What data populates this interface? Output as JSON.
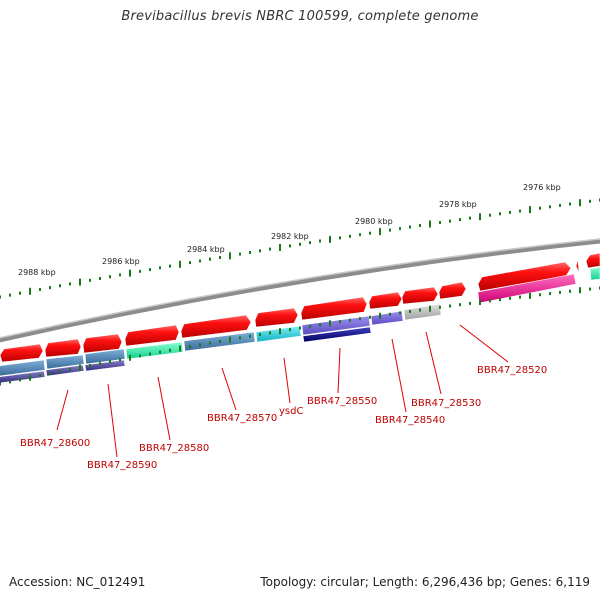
{
  "title": "Brevibacillus brevis NBRC 100599, complete genome",
  "footer": {
    "accession": "Accession: NC_012491",
    "topology": "Topology: circular; Length: 6,296,436 bp; Genes: 6,119"
  },
  "ruler_ticks": [
    "2988 kbp",
    "2986 kbp",
    "2984 kbp",
    "2982 kbp",
    "2980 kbp",
    "2978 kbp",
    "2976 kbp"
  ],
  "gene_labels": [
    "BBR47_28600",
    "BBR47_28590",
    "BBR47_28580",
    "BBR47_28570",
    "ysdC",
    "BBR47_28550",
    "BBR47_28540",
    "BBR47_28530",
    "BBR47_28520"
  ],
  "colors": {
    "forward_gene": "#e8000a",
    "label_red": "#c00000",
    "tick_green": "#1a7a1a",
    "backbone": "#8c8c8c",
    "steelblue": "#4a7fb0",
    "cyan": "#1ec8d8",
    "springgreen": "#22e8a0",
    "slateblue": "#6a5acd",
    "navy": "#0a0a80",
    "grey": "#b8b8b8",
    "magenta": "#e8108a"
  }
}
